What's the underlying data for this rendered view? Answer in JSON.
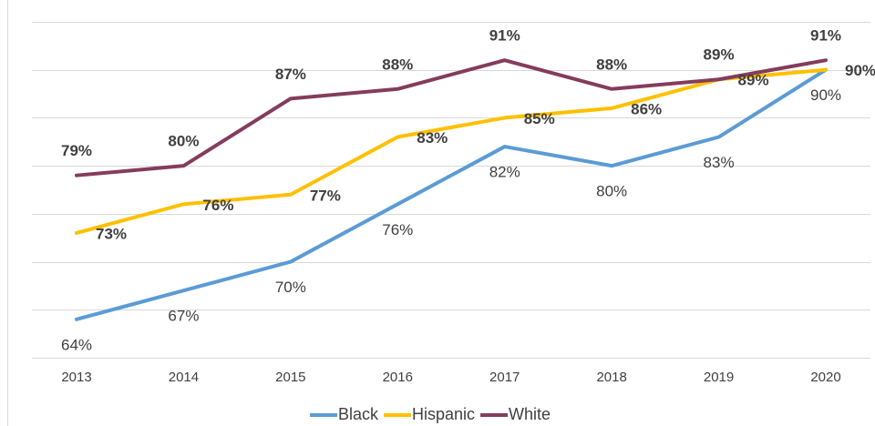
{
  "chart_data": {
    "type": "line",
    "categories": [
      "2013",
      "2014",
      "2015",
      "2016",
      "2017",
      "2018",
      "2019",
      "2020"
    ],
    "series": [
      {
        "name": "Black",
        "color": "#5b9bd5",
        "values": [
          64,
          67,
          70,
          76,
          82,
          80,
          83,
          90
        ],
        "value_labels": [
          "64%",
          "67%",
          "70%",
          "76%",
          "82%",
          "80%",
          "83%",
          "90%"
        ]
      },
      {
        "name": "Hispanic",
        "color": "#ffc000",
        "values": [
          73,
          76,
          77,
          83,
          85,
          86,
          89,
          90
        ],
        "value_labels": [
          "73%",
          "76%",
          "77%",
          "83%",
          "85%",
          "86%",
          "89%",
          "90%"
        ]
      },
      {
        "name": "White",
        "color": "#843c5c",
        "values": [
          79,
          80,
          87,
          88,
          91,
          88,
          89,
          91
        ],
        "value_labels": [
          "79%",
          "80%",
          "87%",
          "88%",
          "91%",
          "88%",
          "89%",
          "91%"
        ]
      }
    ],
    "ylim": [
      60,
      95
    ],
    "yticks": [
      60,
      65,
      70,
      75,
      80,
      85,
      90,
      95
    ],
    "grid": true,
    "legend": "bottom"
  }
}
